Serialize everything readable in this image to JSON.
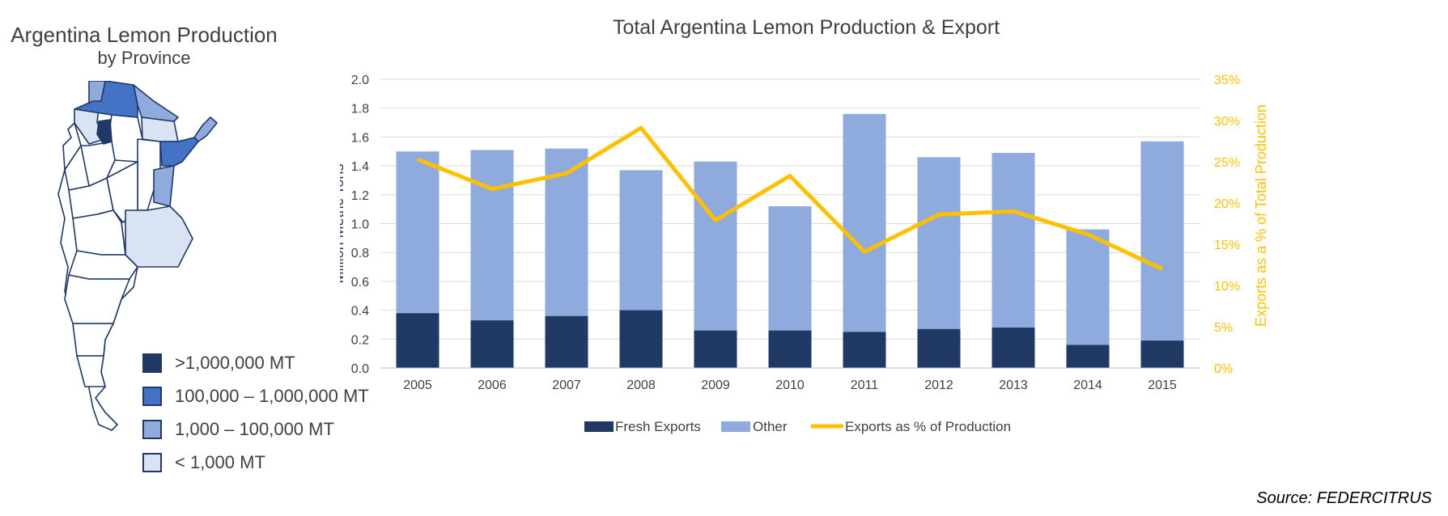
{
  "map": {
    "title": "Argentina Lemon Production",
    "subtitle": "by Province",
    "legend": [
      {
        "label": ">1,000,000 MT",
        "color": "#203864"
      },
      {
        "label": "100,000 – 1,000,000 MT",
        "color": "#4472c4"
      },
      {
        "label": "1,000 – 100,000 MT",
        "color": "#8faadc"
      },
      {
        "label": "< 1,000 MT",
        "color": "#dae3f3"
      }
    ]
  },
  "chart_data": {
    "type": "bar",
    "stacked": true,
    "title": "Total Argentina Lemon Production & Export",
    "ylabel": "Million Metric Tons",
    "y2label": "Exports as a % of Total Production",
    "categories": [
      "2005",
      "2006",
      "2007",
      "2008",
      "2009",
      "2010",
      "2011",
      "2012",
      "2013",
      "2014",
      "2015"
    ],
    "ylim": [
      0,
      2.0
    ],
    "yticks": [
      "0.0",
      "0.2",
      "0.4",
      "0.6",
      "0.8",
      "1.0",
      "1.2",
      "1.4",
      "1.6",
      "1.8",
      "2.0"
    ],
    "y2lim": [
      0,
      35
    ],
    "y2ticks": [
      "0%",
      "5%",
      "10%",
      "15%",
      "20%",
      "25%",
      "30%",
      "35%"
    ],
    "series": [
      {
        "name": "Fresh Exports",
        "kind": "bar",
        "color": "#203864",
        "values": [
          0.38,
          0.33,
          0.36,
          0.4,
          0.26,
          0.26,
          0.25,
          0.27,
          0.28,
          0.16,
          0.19
        ]
      },
      {
        "name": "Other",
        "kind": "bar",
        "color": "#8faadc",
        "values": [
          1.12,
          1.18,
          1.16,
          0.97,
          1.17,
          0.86,
          1.51,
          1.19,
          1.21,
          0.8,
          1.38
        ]
      },
      {
        "name": "Exports as % of Production",
        "kind": "line",
        "axis": "right",
        "color": "#ffc000",
        "values": [
          25.3,
          21.7,
          23.6,
          29.1,
          17.9,
          23.3,
          14.1,
          18.6,
          19.0,
          16.2,
          12.0
        ]
      }
    ],
    "grid": true,
    "legend_position": "bottom"
  },
  "source": "Source: FEDERCITRUS"
}
